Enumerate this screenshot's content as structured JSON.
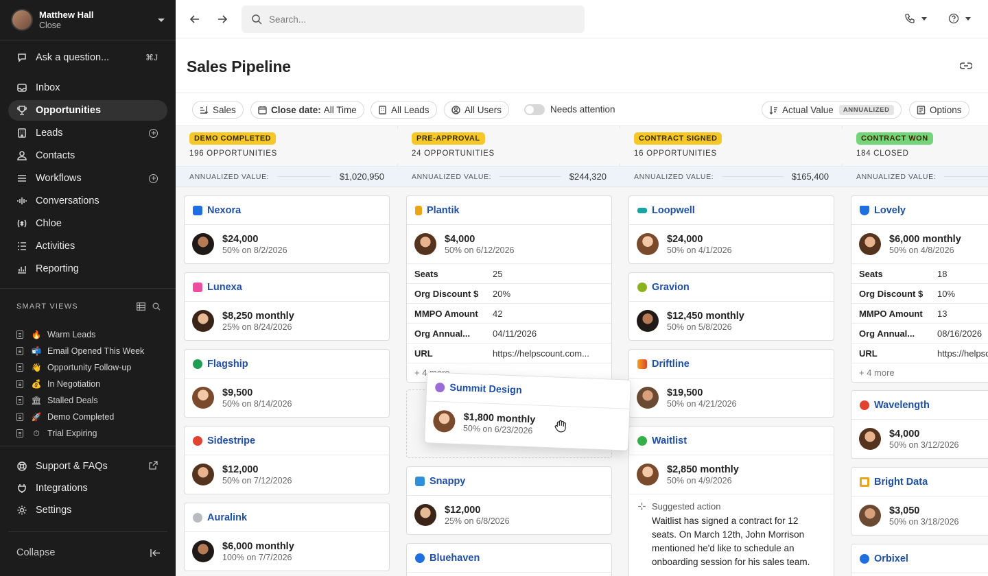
{
  "user": {
    "name": "Matthew Hall",
    "org": "Close"
  },
  "sidebar": {
    "ask": {
      "label": "Ask a question...",
      "shortcut": "⌘J"
    },
    "items": [
      {
        "label": "Inbox",
        "icon": "inbox-icon"
      },
      {
        "label": "Opportunities",
        "icon": "trophy-icon",
        "active": true
      },
      {
        "label": "Leads",
        "icon": "building-icon"
      },
      {
        "label": "Contacts",
        "icon": "person-icon"
      },
      {
        "label": "Workflows",
        "icon": "list-icon"
      },
      {
        "label": "Conversations",
        "icon": "waveform-icon"
      },
      {
        "label": "Chloe",
        "icon": "ai-icon"
      },
      {
        "label": "Activities",
        "icon": "activities-icon"
      },
      {
        "label": "Reporting",
        "icon": "chart-icon"
      }
    ],
    "smart_views_title": "SMART VIEWS",
    "smart_views": [
      {
        "emoji": "🔥",
        "label": "Warm Leads"
      },
      {
        "emoji": "📬",
        "label": "Email Opened This Week"
      },
      {
        "emoji": "👋",
        "label": "Opportunity Follow-up"
      },
      {
        "emoji": "💰",
        "label": "In Negotiation"
      },
      {
        "emoji": "🏛",
        "label": "Stalled Deals"
      },
      {
        "emoji": "🚀",
        "label": "Demo Completed"
      },
      {
        "emoji": "⏱",
        "label": "Trial Expiring"
      }
    ],
    "bottom": [
      {
        "label": "Support & FAQs",
        "icon": "lifebuoy-icon"
      },
      {
        "label": "Integrations",
        "icon": "plug-icon"
      },
      {
        "label": "Settings",
        "icon": "gear-icon"
      }
    ],
    "collapse": "Collapse"
  },
  "search": {
    "placeholder": "Search..."
  },
  "page": {
    "title": "Sales Pipeline"
  },
  "filters": {
    "sales": "Sales",
    "close_date_label": "Close date:",
    "close_date_value": "All Time",
    "leads": "All Leads",
    "users": "All Users",
    "needs_attention": "Needs attention",
    "actual_value": "Actual Value",
    "annualized": "ANNUALIZED",
    "options": "Options"
  },
  "columns": [
    {
      "status": "DEMO COMPLETED",
      "color": "#f6c827",
      "count": "196 OPPORTUNITIES",
      "value_label": "ANNUALIZED VALUE:",
      "value": "$1,020,950",
      "cards": [
        {
          "name": "Nexora",
          "logo": "#1f6fe0",
          "avatar": "p4",
          "amount": "$24,000",
          "sub": "50% on 8/2/2026"
        },
        {
          "name": "Lunexa",
          "logo": "#ec4fa0",
          "avatar": "p2",
          "amount": "$8,250 monthly",
          "sub": "25% on 8/24/2026"
        },
        {
          "name": "Flagship",
          "logo": "#1f9e54",
          "avatar": "p1",
          "amount": "$9,500",
          "sub": "50% on 8/14/2026"
        },
        {
          "name": "Sidestripe",
          "logo": "#e2432f",
          "avatar": "p3",
          "amount": "$12,000",
          "sub": "50% on 7/12/2026"
        },
        {
          "name": "Auralink",
          "logo": "#9aa0a6",
          "avatar": "p4",
          "amount": "$6,000 monthly",
          "sub": "100% on 7/7/2026"
        }
      ]
    },
    {
      "status": "PRE-APPROVAL",
      "color": "#f6c827",
      "count": "24 OPPORTUNITIES",
      "value_label": "ANNUALIZED VALUE:",
      "value": "$244,320",
      "plantik": {
        "name": "Plantik",
        "logo": "#f0a21a",
        "amount": "$4,000",
        "sub": "50% on 6/12/2026",
        "fields": [
          {
            "k": "Seats",
            "v": "25"
          },
          {
            "k": "Org Discount $",
            "v": "20%"
          },
          {
            "k": "MMPO Amount",
            "v": "42"
          },
          {
            "k": "Org Annual...",
            "v": "04/11/2026"
          },
          {
            "k": "URL",
            "v": "https://helpscount.com..."
          }
        ],
        "more": "+ 4 more"
      },
      "cards": [
        {
          "name": "Snappy",
          "logo": "#2f8fd8",
          "avatar": "p2",
          "amount": "$12,000",
          "sub": "25% on 6/8/2026"
        },
        {
          "name": "Bluehaven",
          "logo": "#1f6fe0"
        }
      ]
    },
    {
      "status": "CONTRACT SIGNED",
      "color": "#f6c827",
      "count": "16 OPPORTUNITIES",
      "value_label": "ANNUALIZED VALUE:",
      "value": "$165,400",
      "cards": [
        {
          "name": "Loopwell",
          "logo": "#1aa3a3",
          "avatar": "p1",
          "amount": "$24,000",
          "sub": "50% on 4/1/2026"
        },
        {
          "name": "Gravion",
          "logo": "#8ab31d",
          "avatar": "p4",
          "amount": "$12,450 monthly",
          "sub": "50% on 5/8/2026"
        },
        {
          "name": "Driftline",
          "logo": "#f07c1a",
          "avatar": "p5",
          "amount": "$19,500",
          "sub": "50% on 4/21/2026"
        },
        {
          "name": "Waitlist",
          "logo": "#34b04a",
          "avatar": "p1",
          "amount": "$2,850 monthly",
          "sub": "50% on 4/9/2026",
          "suggested_label": "Suggested action",
          "suggested_text": "Waitlist has signed a contract for 12 seats. On March 12th, John Morrison mentioned he'd like to schedule an onboarding session for his sales team."
        }
      ]
    },
    {
      "status": "CONTRACT WON",
      "color": "#74d47a",
      "count": "184 CLOSED",
      "value_label": "ANNUALIZED VALUE:",
      "lovely": {
        "name": "Lovely",
        "logo": "#1f6fe0",
        "amount": "$6,000 monthly",
        "sub": "50% on 4/8/2026",
        "fields": [
          {
            "k": "Seats",
            "v": "18"
          },
          {
            "k": "Org Discount $",
            "v": "10%"
          },
          {
            "k": "MMPO Amount",
            "v": "13"
          },
          {
            "k": "Org Annual...",
            "v": "08/16/2026"
          },
          {
            "k": "URL",
            "v": "https://helpscount.com..."
          }
        ],
        "more": "+ 4 more"
      },
      "cards": [
        {
          "name": "Wavelength",
          "logo": "#e2432f",
          "avatar": "p3",
          "amount": "$4,000",
          "sub": "50% on 3/12/2026"
        },
        {
          "name": "Bright Data",
          "logo": "#f0a21a",
          "avatar": "p5",
          "amount": "$3,050",
          "sub": "50% on 3/18/2026"
        },
        {
          "name": "Orbixel",
          "logo": "#1f6fe0"
        }
      ]
    }
  ],
  "dragging": {
    "name": "Summit Design",
    "logo": "#9b6bd6",
    "amount": "$1,800 monthly",
    "sub": "50% on 6/23/2026"
  }
}
